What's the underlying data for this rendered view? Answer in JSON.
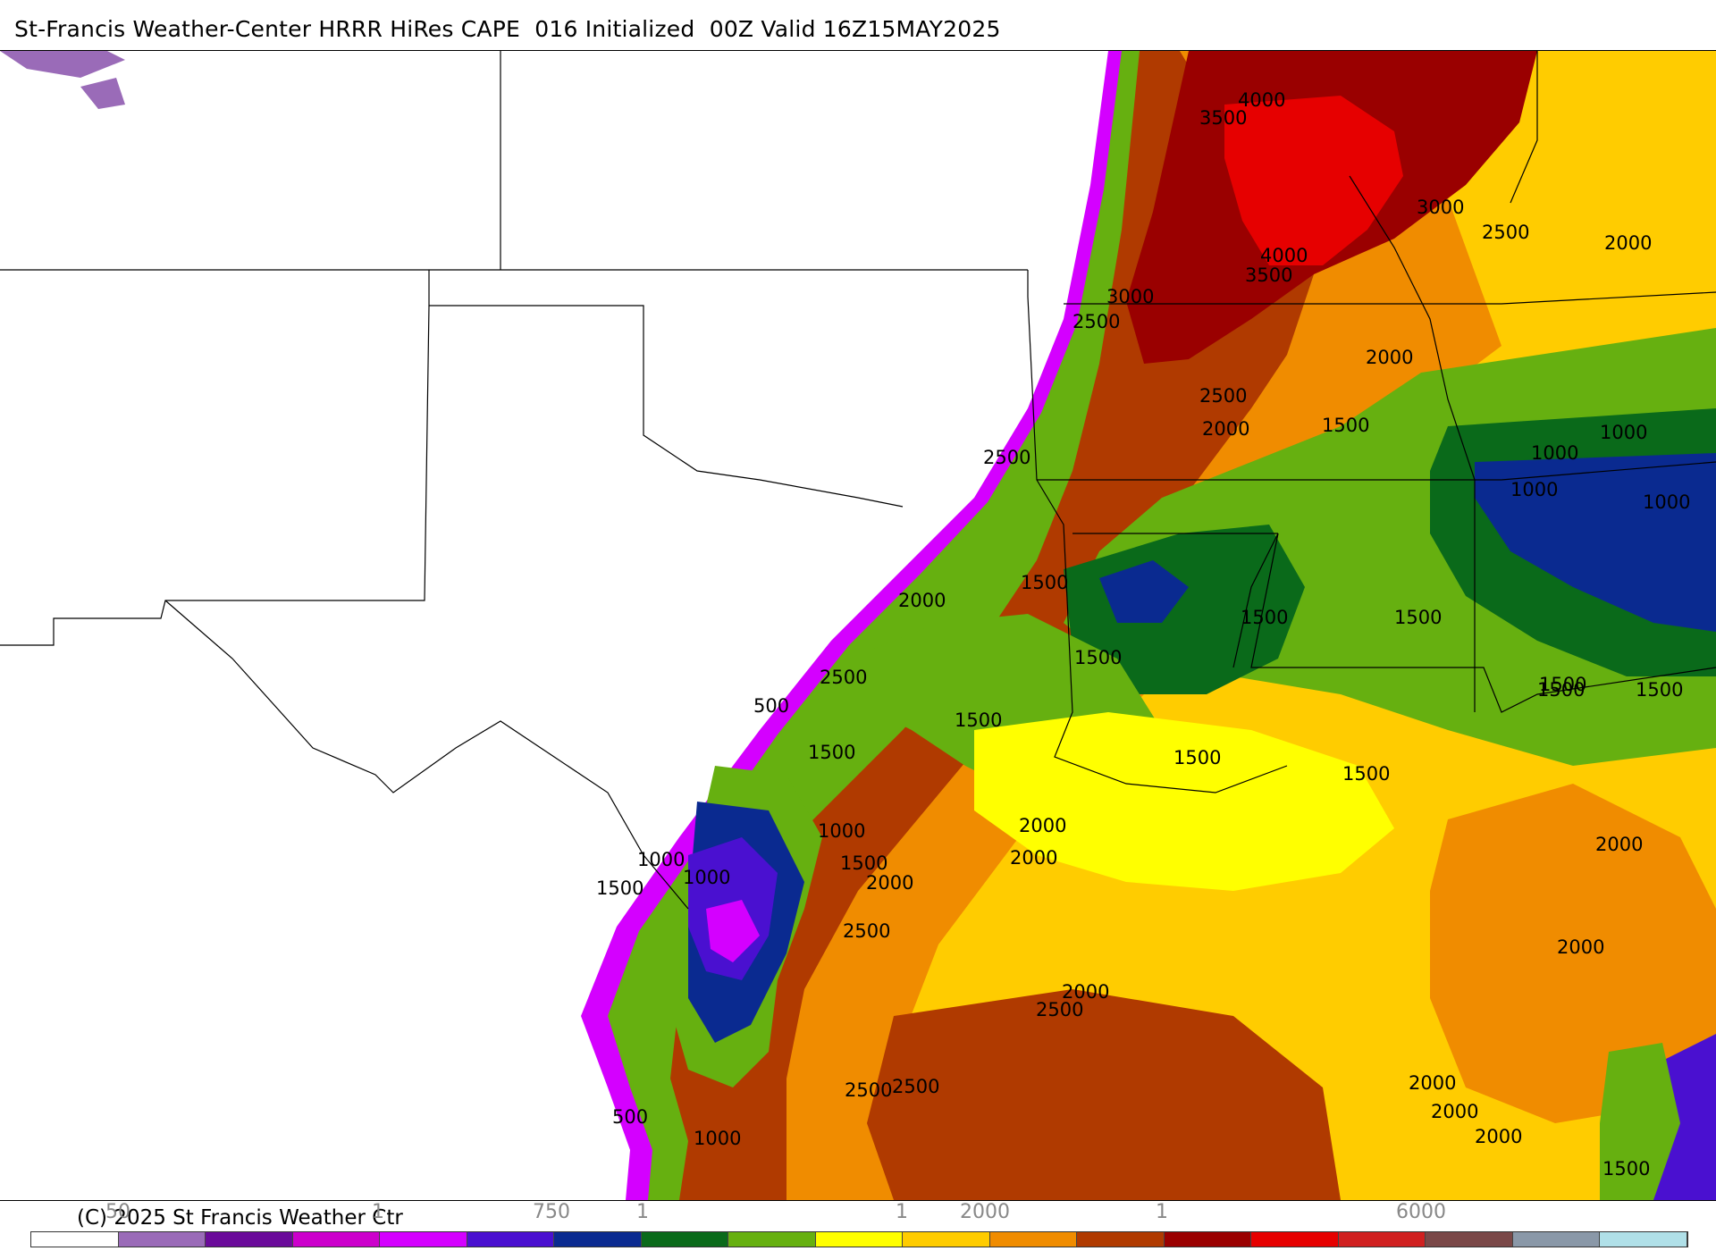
{
  "title": "St-Francis Weather-Center HRRR HiRes CAPE  016 Initialized  00Z Valid 16Z15MAY2025",
  "copyright": "(C) 2025 St Francis Weather Ctr",
  "scale_labels": [
    "50",
    "1",
    "750",
    "1",
    "1",
    "2000",
    "1",
    "6000"
  ],
  "colorbar_colors": [
    "#ffffff",
    "#9a6bb8",
    "#6a0a9a",
    "#cc00cc",
    "#d400ff",
    "#4a10d0",
    "#0a2a90",
    "#0a6a1a",
    "#66b010",
    "#ffff00",
    "#ffcc00",
    "#f08c00",
    "#b03a00",
    "#9a0000",
    "#e60000",
    "#d02020",
    "#7a4848",
    "#8a98a8",
    "#b0e0e8"
  ],
  "contour_labels": [
    {
      "text": "4000"
    },
    {
      "text": "3500"
    },
    {
      "text": "3000"
    },
    {
      "text": "2500"
    },
    {
      "text": "2000"
    },
    {
      "text": "4000"
    },
    {
      "text": "3500"
    },
    {
      "text": "3000"
    },
    {
      "text": "2500"
    },
    {
      "text": "2000"
    },
    {
      "text": "2500"
    },
    {
      "text": "1500"
    },
    {
      "text": "2000"
    },
    {
      "text": "1000"
    },
    {
      "text": "1000"
    },
    {
      "text": "2500"
    },
    {
      "text": "1000"
    },
    {
      "text": "1000"
    },
    {
      "text": "1500"
    },
    {
      "text": "2000"
    },
    {
      "text": "1500"
    },
    {
      "text": "1500"
    },
    {
      "text": "1500"
    },
    {
      "text": "2500"
    },
    {
      "text": "500"
    },
    {
      "text": "1500"
    },
    {
      "text": "1500"
    },
    {
      "text": "1500"
    },
    {
      "text": "1500"
    },
    {
      "text": "1500"
    },
    {
      "text": "1500"
    },
    {
      "text": "1500"
    },
    {
      "text": "1000"
    },
    {
      "text": "2000"
    },
    {
      "text": "2000"
    },
    {
      "text": "1500"
    },
    {
      "text": "2000"
    },
    {
      "text": "2000"
    },
    {
      "text": "1000"
    },
    {
      "text": "1000"
    },
    {
      "text": "1500"
    },
    {
      "text": "2500"
    },
    {
      "text": "2000"
    },
    {
      "text": "2500"
    },
    {
      "text": "2000"
    },
    {
      "text": "2500"
    },
    {
      "text": "2500"
    },
    {
      "text": "2000"
    },
    {
      "text": "2000"
    },
    {
      "text": "500"
    },
    {
      "text": "1000"
    },
    {
      "text": "1500"
    },
    {
      "text": "2000"
    }
  ]
}
